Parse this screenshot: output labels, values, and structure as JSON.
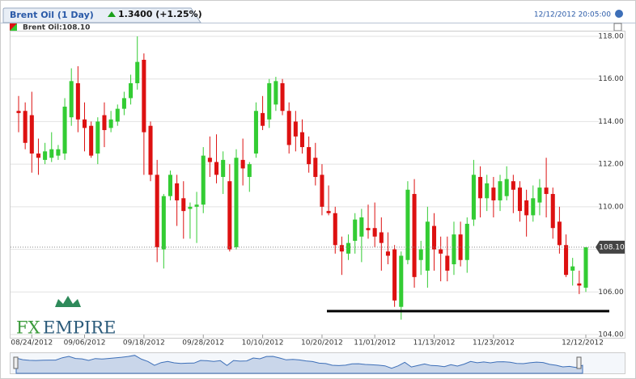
{
  "header": {
    "tab_title": "Brent Oil (1 Day)",
    "change": "1.3400 (+1.25%)",
    "timestamp": "12/12/2012 20:05:00"
  },
  "logo": {
    "part1": "FX",
    "part2": "EMPIRE"
  },
  "chart_data": {
    "type": "candlestick",
    "legend": "Brent Oil:108.10",
    "up_color": "#33cc33",
    "down_color": "#dd1111",
    "grid": true,
    "categories": [
      null,
      null,
      "08/24/2012",
      null,
      null,
      null,
      null,
      null,
      null,
      null,
      "09/06/2012",
      null,
      null,
      null,
      null,
      null,
      null,
      null,
      null,
      "09/18/2012",
      null,
      null,
      null,
      null,
      null,
      null,
      null,
      null,
      "09/28/2012",
      null,
      null,
      null,
      null,
      null,
      null,
      null,
      null,
      "10/10/2012",
      null,
      null,
      null,
      null,
      null,
      null,
      null,
      null,
      "10/20/2012",
      null,
      null,
      null,
      null,
      null,
      null,
      null,
      "11/01/2012",
      null,
      null,
      null,
      null,
      null,
      null,
      null,
      null,
      "11/13/2012",
      null,
      null,
      null,
      null,
      null,
      null,
      null,
      null,
      "11/23/2012",
      null,
      null,
      null,
      null,
      null,
      null,
      null,
      null,
      null,
      null,
      null,
      null,
      null,
      "12/12/2012"
    ],
    "open": [
      114.5,
      114.5,
      114.3,
      112.5,
      112.2,
      112.3,
      112.4,
      112.5,
      114.2,
      115.8,
      114.1,
      113.8,
      112.5,
      114.3,
      113.7,
      114.0,
      114.6,
      115.1,
      115.8,
      116.9,
      113.8,
      111.5,
      108.0,
      110.5,
      111.1,
      110.4,
      109.9,
      110.0,
      110.1,
      112.3,
      112.1,
      111.4,
      111.2,
      108.1,
      112.2,
      111.4,
      112.5,
      114.4,
      114.1,
      114.8,
      115.8,
      114.5,
      114.0,
      113.5,
      112.8,
      112.3,
      111.5,
      109.8,
      109.7,
      108.2,
      107.8,
      108.4,
      108.6,
      109.0,
      109.0,
      108.8,
      107.9,
      108.0,
      105.3,
      107.5,
      110.6,
      107.5,
      107.0,
      109.1,
      108.0,
      107.7,
      107.3,
      108.7,
      107.5,
      109.4,
      111.4,
      110.4,
      110.9,
      110.3,
      110.5,
      111.2,
      110.9,
      110.3,
      109.6,
      110.2,
      110.9,
      110.6,
      109.3,
      108.2,
      107.0,
      106.4,
      106.2
    ],
    "high": [
      115.2,
      114.9,
      115.4,
      113.2,
      113.0,
      113.5,
      112.9,
      115.1,
      116.5,
      116.6,
      114.9,
      114.0,
      114.2,
      114.9,
      114.5,
      114.8,
      115.4,
      116.2,
      118.0,
      117.2,
      114.0,
      112.2,
      110.6,
      111.7,
      111.5,
      111.2,
      110.2,
      110.7,
      112.8,
      113.3,
      113.4,
      112.6,
      112.0,
      112.7,
      113.2,
      112.1,
      114.9,
      115.2,
      116.0,
      116.1,
      116.0,
      114.9,
      114.5,
      114.1,
      113.3,
      113.0,
      112.0,
      111.0,
      110.0,
      108.6,
      108.7,
      109.7,
      109.9,
      110.1,
      110.2,
      109.5,
      108.8,
      108.2,
      107.9,
      111.2,
      111.3,
      108.4,
      110.0,
      109.7,
      108.6,
      108.6,
      109.3,
      109.3,
      109.5,
      112.2,
      111.9,
      111.5,
      111.4,
      111.5,
      111.9,
      111.5,
      111.2,
      110.8,
      111.0,
      111.3,
      112.3,
      110.9,
      110.0,
      108.7,
      107.6,
      107.0,
      108.1
    ],
    "low": [
      113.5,
      112.7,
      111.6,
      111.5,
      112.0,
      112.1,
      112.2,
      112.2,
      113.8,
      113.5,
      112.6,
      112.3,
      112.0,
      112.8,
      113.5,
      113.8,
      114.3,
      114.8,
      115.5,
      111.5,
      111.2,
      107.4,
      107.1,
      110.3,
      109.1,
      108.5,
      108.5,
      108.3,
      109.7,
      111.4,
      111.1,
      110.6,
      107.9,
      108.0,
      111.0,
      110.7,
      112.3,
      113.6,
      113.7,
      114.5,
      114.3,
      112.5,
      112.6,
      112.5,
      111.6,
      111.0,
      109.6,
      109.6,
      107.8,
      106.8,
      107.5,
      107.8,
      107.4,
      108.5,
      108.1,
      107.0,
      107.3,
      105.3,
      104.7,
      107.3,
      106.2,
      106.8,
      106.2,
      107.0,
      106.5,
      106.5,
      106.8,
      107.2,
      106.9,
      109.1,
      109.5,
      109.8,
      109.5,
      109.8,
      110.3,
      109.7,
      109.3,
      108.6,
      109.3,
      109.6,
      109.5,
      108.5,
      107.8,
      106.7,
      106.3,
      105.9,
      106.0
    ],
    "close": [
      114.4,
      113.0,
      112.5,
      112.3,
      112.6,
      112.7,
      112.7,
      114.7,
      115.9,
      114.1,
      113.7,
      112.4,
      114.0,
      113.6,
      114.1,
      114.6,
      115.1,
      115.8,
      116.8,
      113.5,
      111.5,
      108.1,
      110.5,
      111.5,
      110.3,
      109.8,
      110.0,
      110.1,
      112.4,
      112.1,
      111.5,
      112.2,
      108.0,
      112.3,
      111.8,
      112.0,
      114.5,
      113.8,
      115.8,
      115.9,
      114.5,
      112.9,
      113.3,
      112.8,
      112.0,
      111.4,
      110.0,
      109.7,
      108.2,
      107.9,
      108.3,
      109.4,
      109.5,
      108.9,
      108.6,
      108.3,
      107.7,
      105.6,
      107.7,
      110.8,
      106.7,
      108.0,
      109.3,
      108.0,
      107.8,
      107.0,
      108.7,
      107.5,
      109.2,
      111.5,
      110.4,
      111.1,
      110.3,
      111.2,
      111.3,
      110.8,
      109.8,
      109.6,
      110.4,
      110.9,
      110.6,
      109.0,
      108.2,
      106.8,
      107.2,
      106.3,
      108.1
    ],
    "ylim": [
      104,
      118
    ],
    "yticks": [
      {
        "value": 104,
        "label": "104.00"
      },
      {
        "value": 106,
        "label": "106.00"
      },
      {
        "value": 108,
        "label": "108.00"
      },
      {
        "value": 110,
        "label": "110.00"
      },
      {
        "value": 112,
        "label": "112.00"
      },
      {
        "value": 114,
        "label": "114.00"
      },
      {
        "value": 116,
        "label": "116.00"
      },
      {
        "value": 118,
        "label": "118.00"
      }
    ],
    "price_marker": {
      "value": 108.1,
      "label": "108.10"
    },
    "support_line": 105.1
  }
}
